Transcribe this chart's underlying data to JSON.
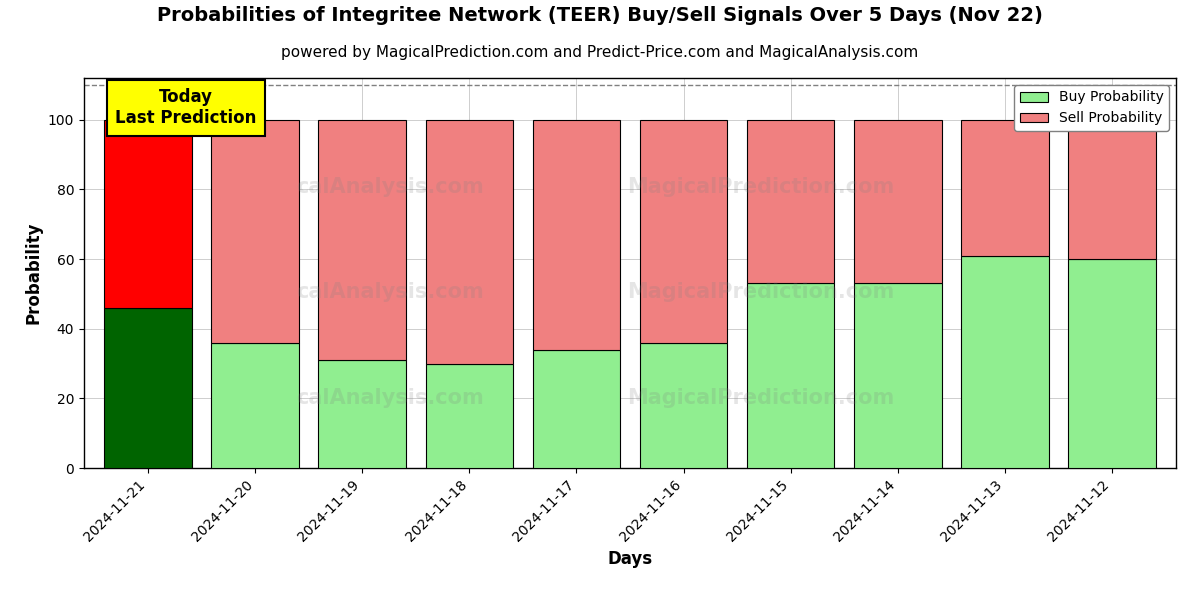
{
  "title": "Probabilities of Integritee Network (TEER) Buy/Sell Signals Over 5 Days (Nov 22)",
  "subtitle": "powered by MagicalPrediction.com and Predict-Price.com and MagicalAnalysis.com",
  "xlabel": "Days",
  "ylabel": "Probability",
  "categories": [
    "2024-11-21",
    "2024-11-20",
    "2024-11-19",
    "2024-11-18",
    "2024-11-17",
    "2024-11-16",
    "2024-11-15",
    "2024-11-14",
    "2024-11-13",
    "2024-11-12"
  ],
  "buy_values": [
    46,
    36,
    31,
    30,
    34,
    36,
    53,
    53,
    61,
    60
  ],
  "sell_values": [
    54,
    64,
    69,
    70,
    66,
    64,
    47,
    47,
    39,
    40
  ],
  "today_index": 0,
  "buy_color_today": "#006400",
  "sell_color_today": "#FF0000",
  "buy_color_other": "#90EE90",
  "sell_color_other": "#F08080",
  "bar_edge_color": "#000000",
  "ylim": [
    0,
    112
  ],
  "yticks": [
    0,
    20,
    40,
    60,
    80,
    100
  ],
  "dashed_line_y": 110,
  "legend_buy_label": "Buy Probability",
  "legend_sell_label": "Sell Probability",
  "today_label": "Today\nLast Prediction",
  "fig_width": 12,
  "fig_height": 6,
  "background_color": "#ffffff",
  "grid_color": "#bbbbbb",
  "title_fontsize": 14,
  "subtitle_fontsize": 11,
  "label_fontsize": 12,
  "tick_fontsize": 10,
  "bar_width": 0.82
}
